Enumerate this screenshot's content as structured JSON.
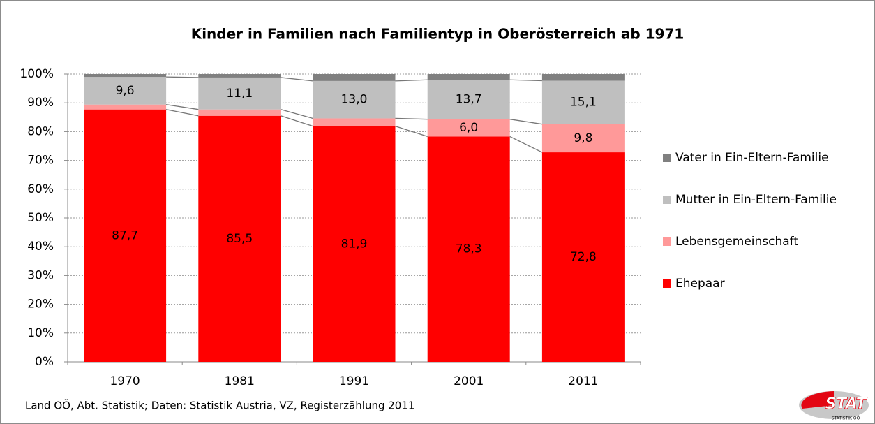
{
  "chart_data": {
    "type": "stacked_bar",
    "title": "Kinder in Familien nach Familientyp in Oberösterreich ab 1971",
    "categories": [
      "1970",
      "1981",
      "1991",
      "2001",
      "2011"
    ],
    "series": [
      {
        "name": "Ehepaar",
        "color": "#ff0000",
        "values": [
          87.7,
          85.5,
          81.9,
          78.3,
          72.8
        ],
        "value_labels": [
          "87,7",
          "85,5",
          "81,9",
          "78,3",
          "72,8"
        ]
      },
      {
        "name": "Lebensgemeinschaft",
        "color": "#ff9999",
        "values": [
          1.7,
          2.2,
          2.7,
          6.0,
          9.8
        ],
        "value_labels": [
          null,
          null,
          null,
          "6,0",
          "9,8"
        ]
      },
      {
        "name": "Mutter in Ein-Eltern-Familie",
        "color": "#bfbfbf",
        "values": [
          9.6,
          11.1,
          13.0,
          13.7,
          15.1
        ],
        "value_labels": [
          "9,6",
          "11,1",
          "13,0",
          "13,7",
          "15,1"
        ]
      },
      {
        "name": "Vater in Ein-Eltern-Familie",
        "color": "#808080",
        "values": [
          1.0,
          1.2,
          2.4,
          2.0,
          2.3
        ]
      }
    ],
    "ylim": [
      0,
      100
    ],
    "yticks": [
      {
        "value": 0,
        "label": "0%"
      },
      {
        "value": 10,
        "label": "10%"
      },
      {
        "value": 20,
        "label": "20%"
      },
      {
        "value": 30,
        "label": "30%"
      },
      {
        "value": 40,
        "label": "40%"
      },
      {
        "value": 50,
        "label": "50%"
      },
      {
        "value": 60,
        "label": "60%"
      },
      {
        "value": 70,
        "label": "70%"
      },
      {
        "value": 80,
        "label": "80%"
      },
      {
        "value": 90,
        "label": "90%"
      },
      {
        "value": 100,
        "label": "100%"
      }
    ],
    "grid": true,
    "legend": "right"
  },
  "footer": {
    "source": "Land OÖ, Abt. Statistik; Daten: Statistik Austria, VZ, Registerzählung 2011",
    "logo_text": "STAT",
    "logo_subtext": "STATISTIK OÖ"
  }
}
